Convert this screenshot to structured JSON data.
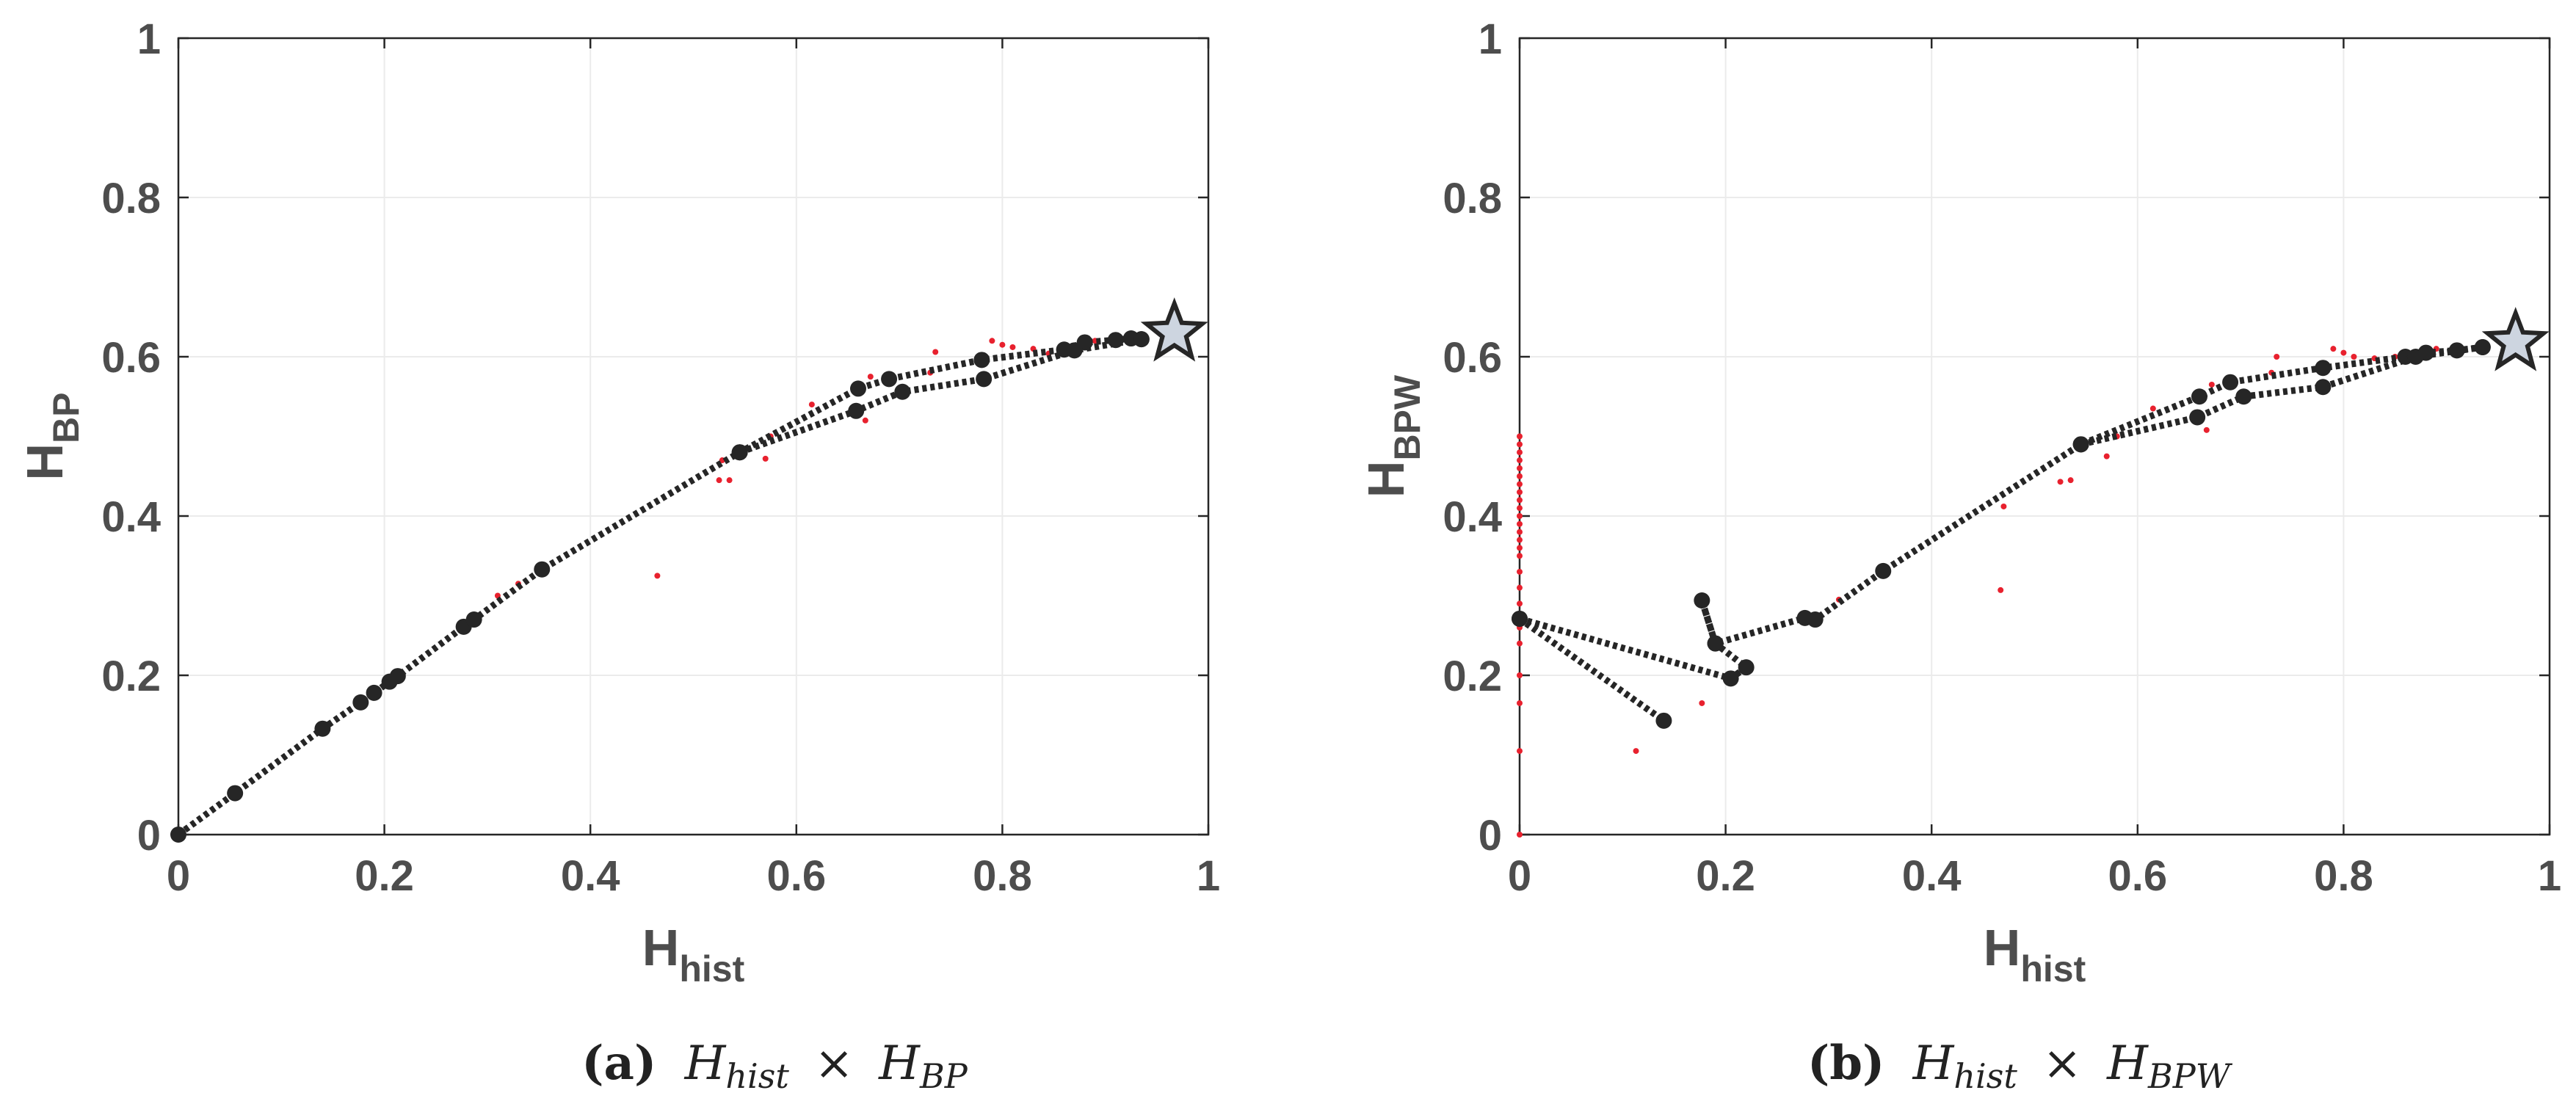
{
  "colors": {
    "grid": "#ebebeb",
    "axis": "#262626",
    "path": "#262626",
    "point": "#262626",
    "scatter": "#e8212e",
    "star_fill": "#cdd5e0",
    "star_stroke": "#262626"
  },
  "captions": [
    {
      "label": "(a)",
      "lhs": "H",
      "lhs_sub": "hist",
      "op": "×",
      "rhs": "H",
      "rhs_sub": "BP"
    },
    {
      "label": "(b)",
      "lhs": "H",
      "lhs_sub": "hist",
      "op": "×",
      "rhs": "H",
      "rhs_sub": "BPW"
    }
  ],
  "chart_data": [
    {
      "type": "scatter",
      "title": "",
      "xlabel": "H",
      "xlabel_sub": "hist",
      "ylabel": "H",
      "ylabel_sub": "BP",
      "xlim": [
        0,
        1
      ],
      "ylim": [
        0,
        1
      ],
      "xticks": [
        "0",
        "0.2",
        "0.4",
        "0.6",
        "0.8",
        "1"
      ],
      "yticks": [
        "0",
        "0.2",
        "0.4",
        "0.6",
        "0.8",
        "1"
      ],
      "grid": true,
      "series": [
        {
          "name": "path",
          "style": "dotted-line-with-markers",
          "points": [
            [
              0,
              0
            ],
            [
              0.055,
              0.052
            ],
            [
              0.14,
              0.133
            ],
            [
              0.177,
              0.166
            ],
            [
              0.19,
              0.178
            ],
            [
              0.205,
              0.192
            ],
            [
              0.213,
              0.199
            ],
            [
              0.277,
              0.261
            ],
            [
              0.287,
              0.27
            ],
            [
              0.353,
              0.333
            ],
            [
              0.545,
              0.48
            ],
            [
              0.66,
              0.56
            ],
            [
              0.69,
              0.572
            ],
            [
              0.78,
              0.596
            ],
            [
              0.86,
              0.609
            ],
            [
              0.88,
              0.618
            ],
            [
              0.91,
              0.621
            ],
            [
              0.925,
              0.623
            ],
            [
              0.935,
              0.622
            ]
          ]
        },
        {
          "name": "path-branch",
          "style": "dotted-line-with-markers",
          "points": [
            [
              0.545,
              0.48
            ],
            [
              0.658,
              0.532
            ],
            [
              0.703,
              0.556
            ],
            [
              0.782,
              0.572
            ],
            [
              0.87,
              0.608
            ],
            [
              0.935,
              0.622
            ]
          ]
        },
        {
          "name": "samples",
          "style": "red-dots",
          "points": [
            [
              0.465,
              0.325
            ],
            [
              0.525,
              0.445
            ],
            [
              0.535,
              0.445
            ],
            [
              0.528,
              0.47
            ],
            [
              0.57,
              0.472
            ],
            [
              0.575,
              0.5
            ],
            [
              0.615,
              0.54
            ],
            [
              0.667,
              0.52
            ],
            [
              0.672,
              0.575
            ],
            [
              0.73,
              0.58
            ],
            [
              0.735,
              0.606
            ],
            [
              0.79,
              0.62
            ],
            [
              0.8,
              0.615
            ],
            [
              0.81,
              0.612
            ],
            [
              0.83,
              0.61
            ],
            [
              0.845,
              0.604
            ],
            [
              0.87,
              0.612
            ],
            [
              0.89,
              0.62
            ],
            [
              0.91,
              0.625
            ],
            [
              0.33,
              0.315
            ],
            [
              0.31,
              0.3
            ]
          ]
        },
        {
          "name": "final",
          "style": "star",
          "points": [
            [
              0.967,
              0.63
            ]
          ]
        }
      ]
    },
    {
      "type": "scatter",
      "title": "",
      "xlabel": "H",
      "xlabel_sub": "hist",
      "ylabel": "H",
      "ylabel_sub": "BPW",
      "xlim": [
        0,
        1
      ],
      "ylim": [
        0,
        1
      ],
      "xticks": [
        "0",
        "0.2",
        "0.4",
        "0.6",
        "0.8",
        "1"
      ],
      "yticks": [
        "0",
        "0.2",
        "0.4",
        "0.6",
        "0.8",
        "1"
      ],
      "grid": true,
      "series": [
        {
          "name": "path",
          "style": "dotted-line-with-markers",
          "points": [
            [
              0,
              0.271
            ],
            [
              0.205,
              0.196
            ],
            [
              0.22,
              0.21
            ],
            [
              0.19,
              0.24
            ],
            [
              0.177,
              0.294
            ],
            [
              0.19,
              0.24
            ],
            [
              0.277,
              0.272
            ],
            [
              0.287,
              0.27
            ],
            [
              0.353,
              0.331
            ],
            [
              0.545,
              0.49
            ],
            [
              0.66,
              0.55
            ],
            [
              0.69,
              0.568
            ],
            [
              0.78,
              0.586
            ],
            [
              0.86,
              0.6
            ],
            [
              0.88,
              0.605
            ],
            [
              0.91,
              0.608
            ],
            [
              0.935,
              0.612
            ]
          ]
        },
        {
          "name": "path-branch-1",
          "style": "dotted-line-with-markers",
          "points": [
            [
              0,
              0.271
            ],
            [
              0.14,
              0.143
            ]
          ]
        },
        {
          "name": "path-branch-2",
          "style": "dotted-line-with-markers",
          "points": [
            [
              0.545,
              0.49
            ],
            [
              0.658,
              0.524
            ],
            [
              0.703,
              0.55
            ],
            [
              0.78,
              0.562
            ],
            [
              0.87,
              0.6
            ],
            [
              0.935,
              0.612
            ]
          ]
        },
        {
          "name": "samples",
          "style": "red-dots",
          "points": [
            [
              0,
              0.0
            ],
            [
              0,
              0.105
            ],
            [
              0,
              0.165
            ],
            [
              0,
              0.2
            ],
            [
              0,
              0.24
            ],
            [
              0,
              0.26
            ],
            [
              0,
              0.29
            ],
            [
              0,
              0.31
            ],
            [
              0,
              0.33
            ],
            [
              0,
              0.35
            ],
            [
              0,
              0.36
            ],
            [
              0,
              0.37
            ],
            [
              0,
              0.38
            ],
            [
              0,
              0.39
            ],
            [
              0,
              0.4
            ],
            [
              0,
              0.41
            ],
            [
              0,
              0.42
            ],
            [
              0,
              0.43
            ],
            [
              0,
              0.44
            ],
            [
              0,
              0.45
            ],
            [
              0,
              0.46
            ],
            [
              0,
              0.47
            ],
            [
              0,
              0.48
            ],
            [
              0,
              0.49
            ],
            [
              0,
              0.5
            ],
            [
              0.113,
              0.105
            ],
            [
              0.177,
              0.165
            ],
            [
              0.467,
              0.307
            ],
            [
              0.47,
              0.412
            ],
            [
              0.525,
              0.443
            ],
            [
              0.535,
              0.445
            ],
            [
              0.57,
              0.475
            ],
            [
              0.58,
              0.5
            ],
            [
              0.615,
              0.535
            ],
            [
              0.667,
              0.508
            ],
            [
              0.672,
              0.565
            ],
            [
              0.73,
              0.58
            ],
            [
              0.735,
              0.6
            ],
            [
              0.79,
              0.61
            ],
            [
              0.8,
              0.605
            ],
            [
              0.81,
              0.6
            ],
            [
              0.83,
              0.598
            ],
            [
              0.85,
              0.6
            ],
            [
              0.87,
              0.604
            ],
            [
              0.89,
              0.61
            ],
            [
              0.91,
              0.612
            ],
            [
              0.31,
              0.295
            ]
          ]
        },
        {
          "name": "final",
          "style": "star",
          "points": [
            [
              0.967,
              0.618
            ]
          ]
        }
      ]
    }
  ]
}
